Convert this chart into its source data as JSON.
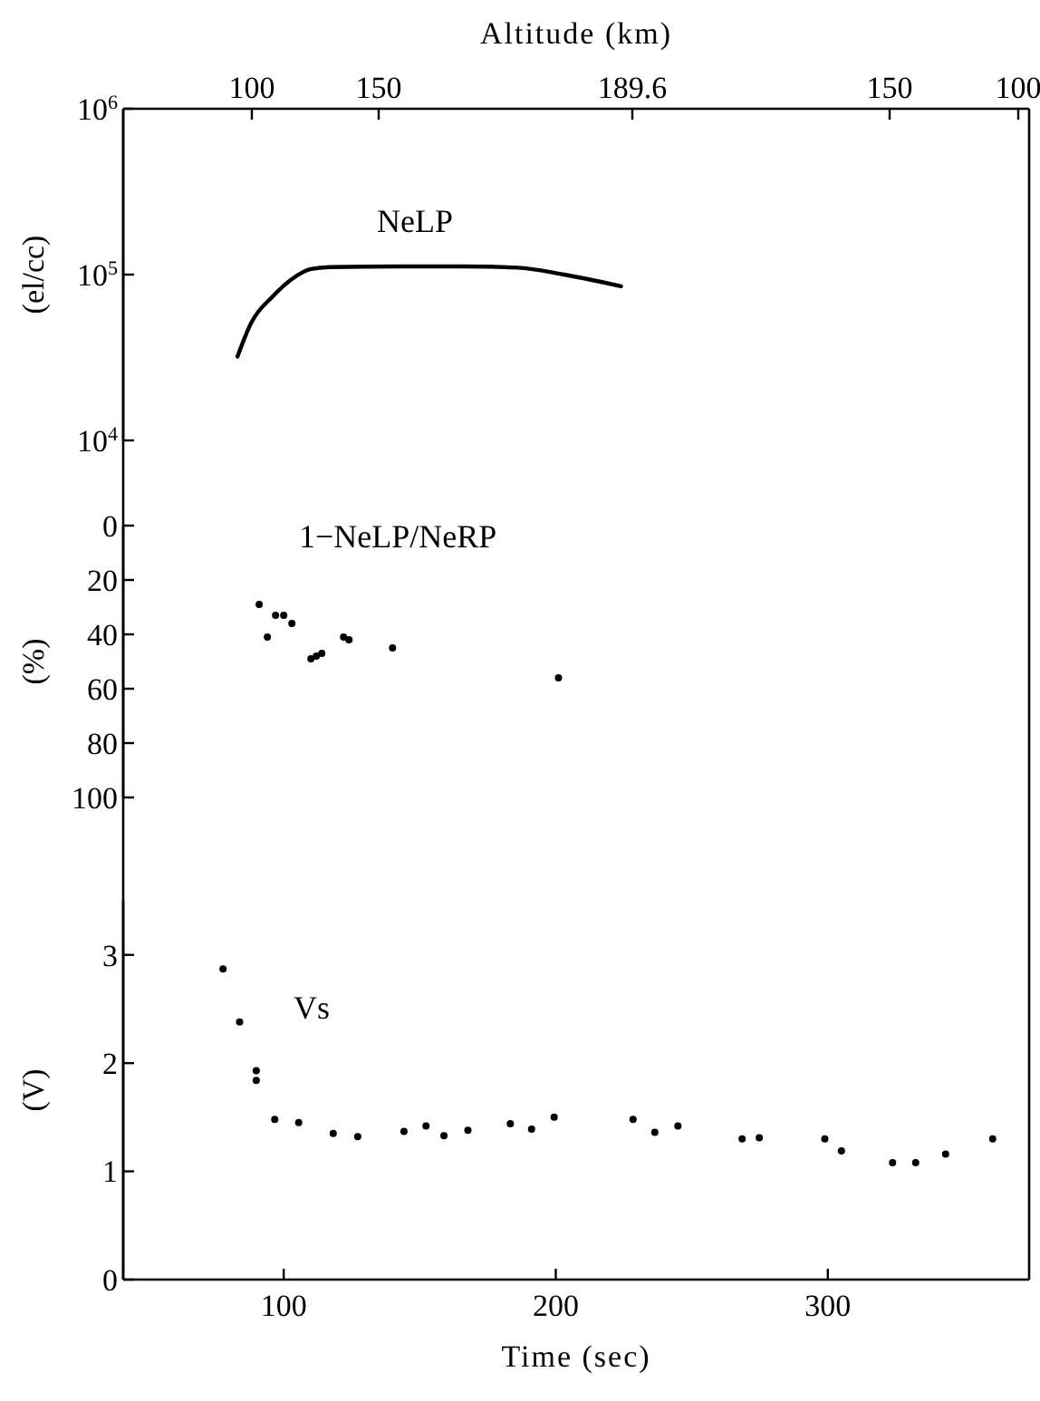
{
  "chart_data": [
    {
      "type": "line",
      "x2label": "Altitude (km)",
      "ylabel": "(el/cc)",
      "log": "y",
      "xlim": [
        41,
        374
      ],
      "annotations": [
        "100",
        "150",
        "189.6",
        "150",
        "100"
      ],
      "ylim": [
        10000,
        1000000
      ],
      "yticks": [
        {
          "value": 10000,
          "label": "10$^{4}$"
        },
        {
          "value": 100000,
          "label": "10$^{5}$"
        },
        {
          "value": 1000000,
          "label": "10$^{6}$"
        }
      ],
      "tick_labels": "y",
      "marker": "none",
      "line_style": "solid",
      "series": [
        {
          "name": "NeLP",
          "color": "#000000",
          "x": [
            83,
            88,
            96,
            103,
            110,
            117,
            142,
            166,
            186,
            203,
            224
          ],
          "values": [
            32000,
            51000,
            74000,
            94000,
            108000,
            111000,
            112000,
            112000,
            110000,
            100000,
            85000
          ]
        }
      ]
    },
    {
      "type": "scatter",
      "ylabel": "(%)",
      "xlim": [
        41,
        374
      ],
      "ylim": [
        100,
        0
      ],
      "yticks": [
        0,
        20,
        40,
        60,
        80,
        100
      ],
      "tick_labels": "y",
      "marker": "circle",
      "series": [
        {
          "name": "1−NeLP/NeRP",
          "color": "#000000",
          "x": [
            91,
            94,
            97,
            100,
            103,
            110,
            112,
            114,
            122,
            124,
            140,
            201
          ],
          "values": [
            29,
            41,
            33,
            33,
            36,
            49,
            48,
            47,
            41,
            42,
            45,
            56
          ]
        }
      ]
    },
    {
      "type": "scatter",
      "xlabel": "Time (sec)",
      "ylabel": "(V)",
      "xlim": [
        41,
        374
      ],
      "xticks": [
        100,
        200,
        300
      ],
      "ylim": [
        0,
        3.5
      ],
      "yticks": [
        0,
        1,
        2,
        3
      ],
      "marker": "circle",
      "series": [
        {
          "name": "Vs",
          "color": "#000000",
          "x": [
            77.7,
            83.8,
            89.9,
            89.9,
            96.7,
            105.5,
            118.2,
            127.2,
            144.2,
            152.3,
            158.9,
            167.7,
            183.3,
            191.1,
            199.4,
            228.4,
            236.4,
            244.9,
            268.5,
            274.8,
            298.9,
            305,
            323.8,
            332.3,
            343.3,
            360.6
          ],
          "values": [
            2.87,
            2.38,
            1.93,
            1.84,
            1.48,
            1.45,
            1.35,
            1.32,
            1.37,
            1.42,
            1.33,
            1.38,
            1.44,
            1.39,
            1.5,
            1.48,
            1.36,
            1.42,
            1.3,
            1.31,
            1.3,
            1.19,
            1.08,
            1.08,
            1.16,
            1.3
          ]
        }
      ]
    }
  ]
}
